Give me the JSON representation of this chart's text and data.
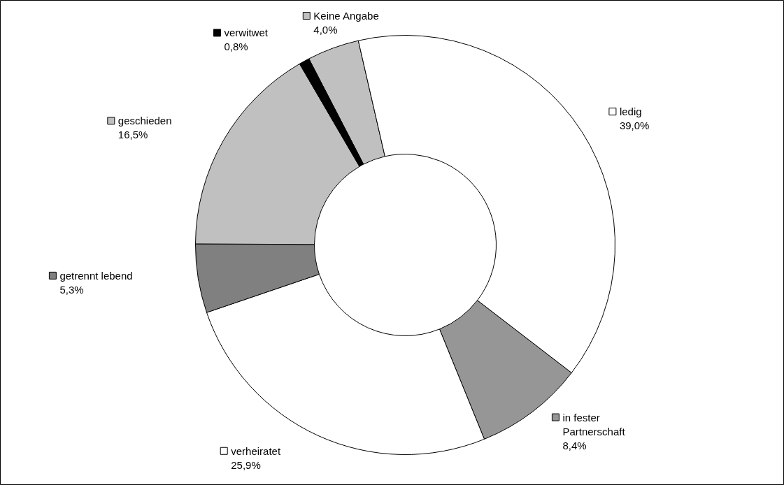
{
  "chart_data": {
    "type": "donut",
    "categories": [
      "Keine Angabe",
      "ledig",
      "in fester Partnerschaft",
      "verheiratet",
      "getrennt lebend",
      "geschieden",
      "verwitwet"
    ],
    "values": [
      4.0,
      39.0,
      8.4,
      25.9,
      5.3,
      16.5,
      0.8
    ],
    "value_labels": [
      "4,0%",
      "39,0%",
      "8,4%",
      "25,9%",
      "5,3%",
      "16,5%",
      "0,8%"
    ],
    "colors": [
      "#c0c0c0",
      "#ffffff",
      "#969696",
      "#ffffff",
      "#808080",
      "#c0c0c0",
      "#000000"
    ],
    "legend": true
  }
}
